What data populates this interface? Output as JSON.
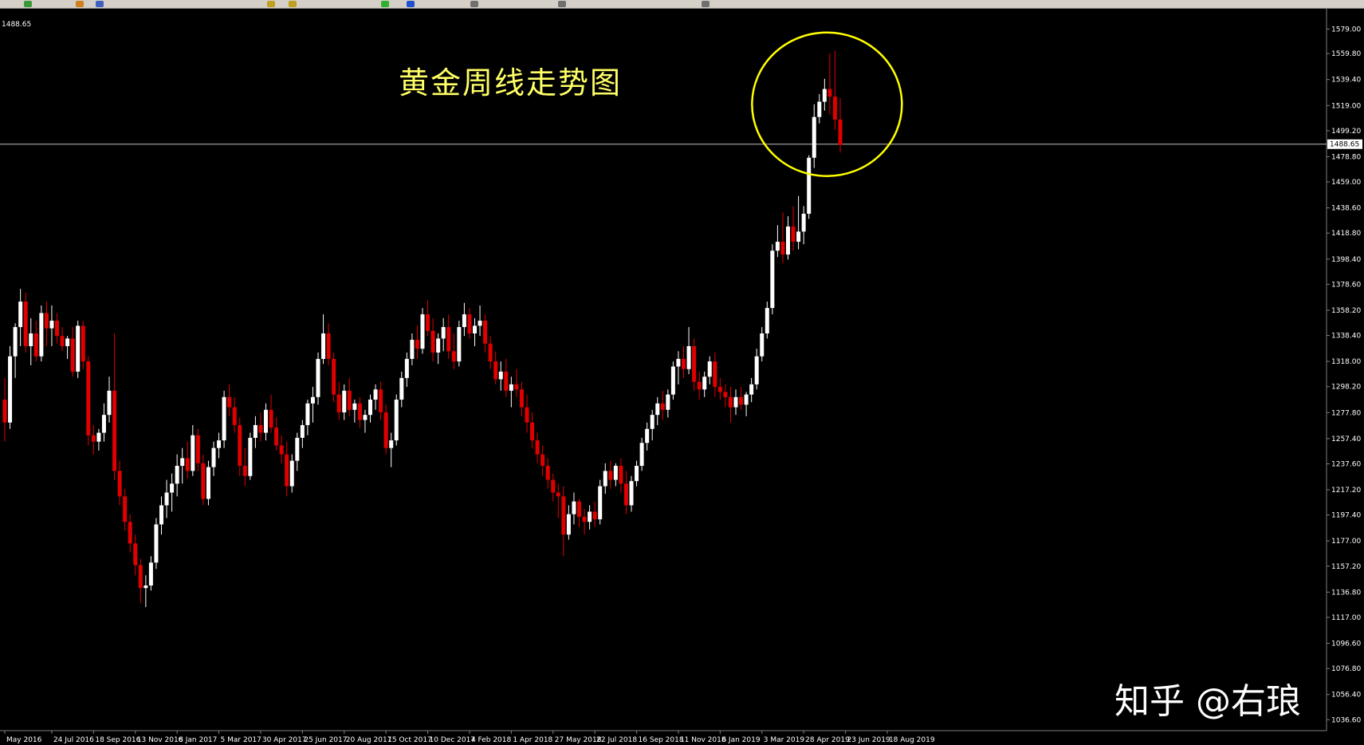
{
  "toolbar": {
    "icons": [
      "new-order-icon",
      "navigator-icon",
      "chart-icon",
      "zoom-in-icon",
      "zoom-out-icon",
      "add-icon",
      "refresh-icon",
      "crosshair-icon",
      "line-icon",
      "arrow-icon"
    ]
  },
  "colors": {
    "background": "#000000",
    "bull_candle": "#ffffff",
    "bear_candle": "#e00000",
    "axis_text": "#ffffff",
    "title": "#ffff66",
    "highlight_circle": "#ffff00",
    "price_line": "#c0c0c0"
  },
  "corner_price": "1488.65",
  "watermark": "知乎 @右琅",
  "chart_data": {
    "type": "candlestick",
    "title": "黄金周线走势图",
    "xlabel": "",
    "ylabel": "",
    "ylim": [
      1028.0,
      1595.0
    ],
    "grid": false,
    "current_price": 1488.65,
    "current_price_label": "1488.65",
    "y_ticks": [
      1579.0,
      1559.8,
      1539.4,
      1519.0,
      1499.2,
      1478.8,
      1459.0,
      1438.6,
      1418.8,
      1398.4,
      1378.6,
      1358.2,
      1338.4,
      1318.0,
      1298.2,
      1277.8,
      1257.4,
      1237.6,
      1217.2,
      1197.4,
      1177.0,
      1157.2,
      1136.8,
      1117.0,
      1096.6,
      1076.8,
      1056.4,
      1036.6
    ],
    "y_tick_labels": [
      "1579.00",
      "1559.80",
      "1539.40",
      "1519.00",
      "1499.20",
      "1478.80",
      "1459.00",
      "1438.60",
      "1418.80",
      "1398.40",
      "1378.60",
      "1358.20",
      "1338.40",
      "1318.00",
      "1298.20",
      "1277.80",
      "1257.40",
      "1237.60",
      "1217.20",
      "1197.40",
      "1177.00",
      "1157.20",
      "1136.80",
      "1117.00",
      "1096.60",
      "1076.80",
      "1056.40",
      "1036.60"
    ],
    "x_tick_labels": [
      "May 2016",
      "24 Jul 2016",
      "18 Sep 2016",
      "13 Nov 2016",
      "8 Jan 2017",
      "5 Mar 2017",
      "30 Apr 2017",
      "25 Jun 2017",
      "20 Aug 2017",
      "15 Oct 2017",
      "10 Dec 2017",
      "4 Feb 2018",
      "1 Apr 2018",
      "27 May 2018",
      "22 Jul 2018",
      "16 Sep 2018",
      "11 Nov 2018",
      "6 Jan 2019",
      "3 Mar 2019",
      "28 Apr 2019",
      "23 Jun 2019",
      "18 Aug 2019"
    ],
    "x_tick_index": [
      0,
      9,
      17,
      25,
      33,
      41,
      49,
      57,
      65,
      73,
      81,
      89,
      97,
      105,
      113,
      121,
      129,
      137,
      145,
      153,
      161,
      169
    ],
    "ohlc": [
      [
        1288,
        1305,
        1255,
        1270
      ],
      [
        1270,
        1330,
        1265,
        1322
      ],
      [
        1322,
        1348,
        1305,
        1345
      ],
      [
        1345,
        1375,
        1330,
        1365
      ],
      [
        1365,
        1372,
        1325,
        1330
      ],
      [
        1330,
        1352,
        1315,
        1340
      ],
      [
        1340,
        1350,
        1318,
        1322
      ],
      [
        1322,
        1362,
        1318,
        1356
      ],
      [
        1356,
        1365,
        1330,
        1344
      ],
      [
        1344,
        1362,
        1330,
        1350
      ],
      [
        1350,
        1356,
        1332,
        1338
      ],
      [
        1338,
        1345,
        1326,
        1330
      ],
      [
        1330,
        1338,
        1320,
        1336
      ],
      [
        1336,
        1345,
        1306,
        1310
      ],
      [
        1310,
        1350,
        1305,
        1346
      ],
      [
        1346,
        1350,
        1312,
        1318
      ],
      [
        1318,
        1322,
        1252,
        1260
      ],
      [
        1260,
        1268,
        1245,
        1255
      ],
      [
        1255,
        1265,
        1248,
        1262
      ],
      [
        1262,
        1285,
        1255,
        1276
      ],
      [
        1276,
        1306,
        1270,
        1295
      ],
      [
        1295,
        1340,
        1225,
        1232
      ],
      [
        1232,
        1240,
        1205,
        1212
      ],
      [
        1212,
        1218,
        1185,
        1192
      ],
      [
        1192,
        1198,
        1168,
        1175
      ],
      [
        1175,
        1182,
        1150,
        1158
      ],
      [
        1158,
        1163,
        1128,
        1140
      ],
      [
        1140,
        1150,
        1125,
        1142
      ],
      [
        1142,
        1165,
        1138,
        1160
      ],
      [
        1160,
        1195,
        1155,
        1190
      ],
      [
        1190,
        1212,
        1182,
        1205
      ],
      [
        1205,
        1225,
        1195,
        1215
      ],
      [
        1215,
        1230,
        1200,
        1222
      ],
      [
        1222,
        1245,
        1212,
        1236
      ],
      [
        1236,
        1250,
        1222,
        1242
      ],
      [
        1242,
        1255,
        1226,
        1232
      ],
      [
        1232,
        1268,
        1228,
        1260
      ],
      [
        1260,
        1265,
        1232,
        1238
      ],
      [
        1238,
        1245,
        1205,
        1210
      ],
      [
        1210,
        1240,
        1205,
        1235
      ],
      [
        1235,
        1255,
        1228,
        1250
      ],
      [
        1250,
        1262,
        1242,
        1256
      ],
      [
        1256,
        1295,
        1250,
        1290
      ],
      [
        1290,
        1300,
        1275,
        1282
      ],
      [
        1282,
        1290,
        1262,
        1268
      ],
      [
        1268,
        1274,
        1228,
        1236
      ],
      [
        1236,
        1250,
        1220,
        1228
      ],
      [
        1228,
        1262,
        1225,
        1258
      ],
      [
        1258,
        1275,
        1250,
        1268
      ],
      [
        1268,
        1278,
        1255,
        1262
      ],
      [
        1262,
        1285,
        1256,
        1280
      ],
      [
        1280,
        1292,
        1262,
        1266
      ],
      [
        1266,
        1274,
        1248,
        1252
      ],
      [
        1252,
        1260,
        1238,
        1245
      ],
      [
        1245,
        1255,
        1212,
        1220
      ],
      [
        1220,
        1245,
        1215,
        1240
      ],
      [
        1240,
        1262,
        1232,
        1258
      ],
      [
        1258,
        1272,
        1250,
        1268
      ],
      [
        1268,
        1288,
        1260,
        1285
      ],
      [
        1285,
        1298,
        1270,
        1290
      ],
      [
        1290,
        1325,
        1284,
        1320
      ],
      [
        1320,
        1355,
        1316,
        1340
      ],
      [
        1340,
        1348,
        1315,
        1320
      ],
      [
        1320,
        1325,
        1286,
        1292
      ],
      [
        1292,
        1302,
        1272,
        1278
      ],
      [
        1278,
        1300,
        1272,
        1295
      ],
      [
        1295,
        1305,
        1275,
        1280
      ],
      [
        1280,
        1288,
        1270,
        1285
      ],
      [
        1285,
        1290,
        1266,
        1272
      ],
      [
        1272,
        1280,
        1262,
        1276
      ],
      [
        1276,
        1292,
        1270,
        1288
      ],
      [
        1288,
        1300,
        1280,
        1296
      ],
      [
        1296,
        1302,
        1272,
        1278
      ],
      [
        1278,
        1284,
        1245,
        1250
      ],
      [
        1250,
        1262,
        1235,
        1256
      ],
      [
        1256,
        1292,
        1252,
        1288
      ],
      [
        1288,
        1310,
        1282,
        1305
      ],
      [
        1305,
        1325,
        1298,
        1320
      ],
      [
        1320,
        1340,
        1315,
        1335
      ],
      [
        1335,
        1346,
        1320,
        1328
      ],
      [
        1328,
        1360,
        1324,
        1355
      ],
      [
        1355,
        1366,
        1338,
        1342
      ],
      [
        1342,
        1352,
        1318,
        1325
      ],
      [
        1325,
        1340,
        1316,
        1336
      ],
      [
        1336,
        1352,
        1326,
        1345
      ],
      [
        1345,
        1355,
        1320,
        1326
      ],
      [
        1326,
        1340,
        1312,
        1318
      ],
      [
        1318,
        1350,
        1314,
        1345
      ],
      [
        1345,
        1364,
        1338,
        1355
      ],
      [
        1355,
        1360,
        1336,
        1340
      ],
      [
        1340,
        1352,
        1330,
        1346
      ],
      [
        1346,
        1362,
        1338,
        1350
      ],
      [
        1350,
        1355,
        1325,
        1332
      ],
      [
        1332,
        1338,
        1312,
        1318
      ],
      [
        1318,
        1326,
        1300,
        1304
      ],
      [
        1304,
        1318,
        1295,
        1310
      ],
      [
        1310,
        1320,
        1290,
        1295
      ],
      [
        1295,
        1306,
        1282,
        1300
      ],
      [
        1300,
        1312,
        1290,
        1296
      ],
      [
        1296,
        1302,
        1275,
        1282
      ],
      [
        1282,
        1292,
        1262,
        1270
      ],
      [
        1270,
        1278,
        1250,
        1256
      ],
      [
        1256,
        1262,
        1238,
        1245
      ],
      [
        1245,
        1252,
        1228,
        1236
      ],
      [
        1236,
        1242,
        1218,
        1225
      ],
      [
        1225,
        1230,
        1208,
        1215
      ],
      [
        1215,
        1222,
        1195,
        1212
      ],
      [
        1212,
        1220,
        1165,
        1182
      ],
      [
        1182,
        1205,
        1178,
        1198
      ],
      [
        1198,
        1215,
        1190,
        1208
      ],
      [
        1208,
        1210,
        1188,
        1196
      ],
      [
        1196,
        1202,
        1182,
        1192
      ],
      [
        1192,
        1205,
        1186,
        1200
      ],
      [
        1200,
        1208,
        1188,
        1194
      ],
      [
        1194,
        1225,
        1190,
        1220
      ],
      [
        1220,
        1238,
        1214,
        1232
      ],
      [
        1232,
        1240,
        1218,
        1225
      ],
      [
        1225,
        1238,
        1220,
        1236
      ],
      [
        1236,
        1242,
        1215,
        1222
      ],
      [
        1222,
        1232,
        1198,
        1205
      ],
      [
        1205,
        1228,
        1200,
        1224
      ],
      [
        1224,
        1240,
        1220,
        1236
      ],
      [
        1236,
        1258,
        1232,
        1254
      ],
      [
        1254,
        1270,
        1248,
        1265
      ],
      [
        1265,
        1280,
        1256,
        1276
      ],
      [
        1276,
        1290,
        1268,
        1285
      ],
      [
        1285,
        1295,
        1272,
        1280
      ],
      [
        1280,
        1296,
        1274,
        1292
      ],
      [
        1292,
        1318,
        1288,
        1314
      ],
      [
        1314,
        1326,
        1300,
        1320
      ],
      [
        1320,
        1330,
        1305,
        1312
      ],
      [
        1312,
        1345,
        1308,
        1330
      ],
      [
        1330,
        1336,
        1295,
        1302
      ],
      [
        1302,
        1310,
        1288,
        1296
      ],
      [
        1296,
        1310,
        1290,
        1306
      ],
      [
        1306,
        1322,
        1300,
        1318
      ],
      [
        1318,
        1325,
        1290,
        1298
      ],
      [
        1298,
        1305,
        1288,
        1294
      ],
      [
        1294,
        1300,
        1282,
        1290
      ],
      [
        1290,
        1298,
        1270,
        1282
      ],
      [
        1282,
        1296,
        1276,
        1290
      ],
      [
        1290,
        1298,
        1280,
        1284
      ],
      [
        1284,
        1294,
        1275,
        1292
      ],
      [
        1292,
        1305,
        1286,
        1300
      ],
      [
        1300,
        1328,
        1296,
        1322
      ],
      [
        1322,
        1345,
        1318,
        1340
      ],
      [
        1340,
        1365,
        1336,
        1360
      ],
      [
        1360,
        1410,
        1355,
        1405
      ],
      [
        1405,
        1425,
        1400,
        1412
      ],
      [
        1412,
        1435,
        1395,
        1402
      ],
      [
        1402,
        1432,
        1398,
        1424
      ],
      [
        1424,
        1440,
        1405,
        1412
      ],
      [
        1412,
        1448,
        1406,
        1420
      ],
      [
        1420,
        1440,
        1410,
        1434
      ],
      [
        1434,
        1480,
        1430,
        1478
      ],
      [
        1478,
        1520,
        1470,
        1510
      ],
      [
        1510,
        1528,
        1505,
        1522
      ],
      [
        1522,
        1540,
        1515,
        1532
      ],
      [
        1532,
        1560,
        1512,
        1526
      ],
      [
        1526,
        1562,
        1500,
        1508
      ],
      [
        1508,
        1525,
        1482,
        1488
      ]
    ]
  }
}
